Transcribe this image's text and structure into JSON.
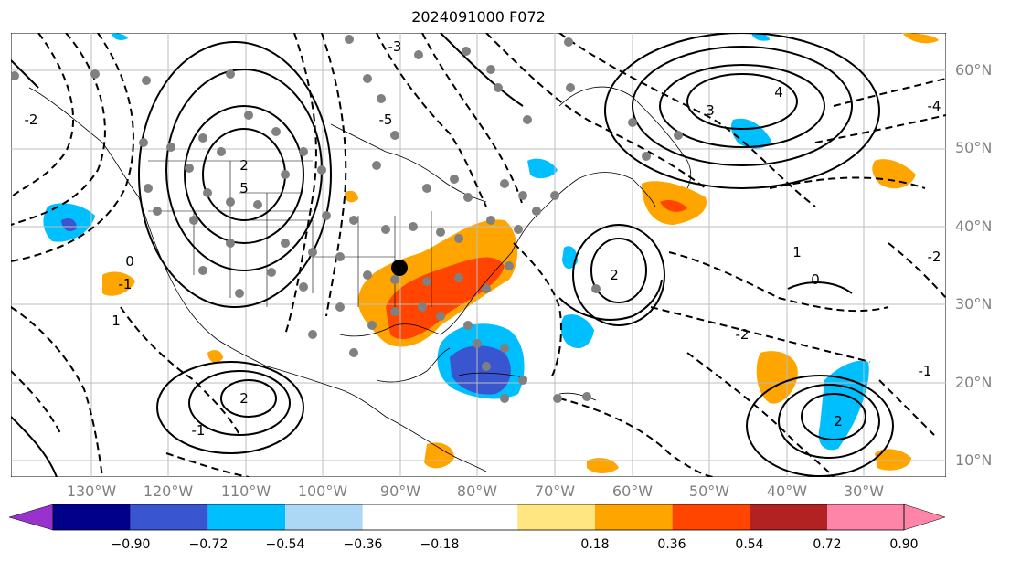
{
  "title": "2024091000 F072",
  "lat_labels": [
    "60°N",
    "50°N",
    "40°N",
    "30°N",
    "20°N",
    "10°N"
  ],
  "lon_labels": [
    "130°W",
    "120°W",
    "110°W",
    "100°W",
    "90°W",
    "80°W",
    "70°W",
    "60°W",
    "50°W",
    "40°W",
    "30°W"
  ],
  "colorbar": {
    "tick_labels": [
      "−0.90",
      "−0.72",
      "−0.54",
      "−0.36",
      "−0.18",
      "0.18",
      "0.36",
      "0.54",
      "0.72",
      "0.90"
    ],
    "colors": [
      "#9932cc",
      "#00008b",
      "#3a55d0",
      "#00bfff",
      "#add8f5",
      "#ffffff",
      "#ffe680",
      "#ffa500",
      "#ff4500",
      "#b22222",
      "#ff85a8"
    ]
  },
  "contour_labels": [
    "-2",
    "2",
    "-1",
    "1",
    "0",
    "-3",
    "3",
    "4",
    "-4",
    "5",
    "-5",
    "-2",
    "2",
    "-1",
    "0",
    "1",
    "2",
    "-1",
    "-2",
    "2"
  ]
}
